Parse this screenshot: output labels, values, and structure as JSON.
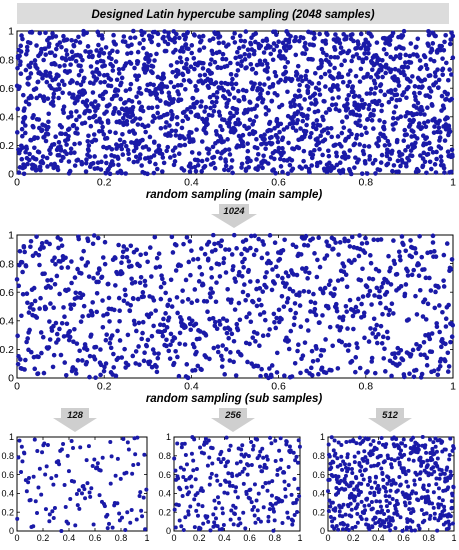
{
  "title": "Designed Latin hypercube sampling (2048 samples)",
  "labels": {
    "main": "random sampling (main sample)",
    "sub": "random sampling (sub samples)"
  },
  "colors": {
    "point": "#1a1aa8",
    "title_bg": "#dcdcdc",
    "arrow": "#cfcfcf"
  },
  "arrows": {
    "a1024": "1024",
    "a128": "128",
    "a256": "256",
    "a512": "512"
  },
  "chart_data": [
    {
      "type": "scatter",
      "name": "panel-2048",
      "n_points": 2048,
      "xlim": [
        0,
        1
      ],
      "ylim": [
        0,
        1
      ],
      "xticks": [
        "0",
        "0.2",
        "0.4",
        "0.6",
        "0.8",
        "1"
      ],
      "yticks": [
        "0",
        "0.2",
        "0.4",
        "0.6",
        "0.8",
        "1"
      ],
      "grid": false
    },
    {
      "type": "scatter",
      "name": "panel-1024",
      "n_points": 1024,
      "xlim": [
        0,
        1
      ],
      "ylim": [
        0,
        1
      ],
      "xticks": [
        "0",
        "0.2",
        "0.4",
        "0.6",
        "0.8",
        "1"
      ],
      "yticks": [
        "0",
        "0.2",
        "0.4",
        "0.6",
        "0.8",
        "1"
      ],
      "grid": false
    },
    {
      "type": "scatter",
      "name": "panel-128",
      "n_points": 128,
      "xlim": [
        0,
        1
      ],
      "ylim": [
        0,
        1
      ],
      "xticks": [
        "0",
        "0.2",
        "0.4",
        "0.6",
        "0.8",
        "1"
      ],
      "yticks": [
        "0",
        "0.2",
        "0.4",
        "0.6",
        "0.8",
        "1"
      ],
      "grid": false
    },
    {
      "type": "scatter",
      "name": "panel-256",
      "n_points": 256,
      "xlim": [
        0,
        1
      ],
      "ylim": [
        0,
        1
      ],
      "xticks": [
        "0",
        "0.2",
        "0.4",
        "0.6",
        "0.8",
        "1"
      ],
      "yticks": [
        "0",
        "0.2",
        "0.4",
        "0.6",
        "0.8",
        "1"
      ],
      "grid": false
    },
    {
      "type": "scatter",
      "name": "panel-512",
      "n_points": 512,
      "xlim": [
        0,
        1
      ],
      "ylim": [
        0,
        1
      ],
      "xticks": [
        "0",
        "0.2",
        "0.4",
        "0.6",
        "0.8",
        "1"
      ],
      "yticks": [
        "0",
        "0.2",
        "0.4",
        "0.6",
        "0.8",
        "1"
      ],
      "grid": false
    }
  ]
}
